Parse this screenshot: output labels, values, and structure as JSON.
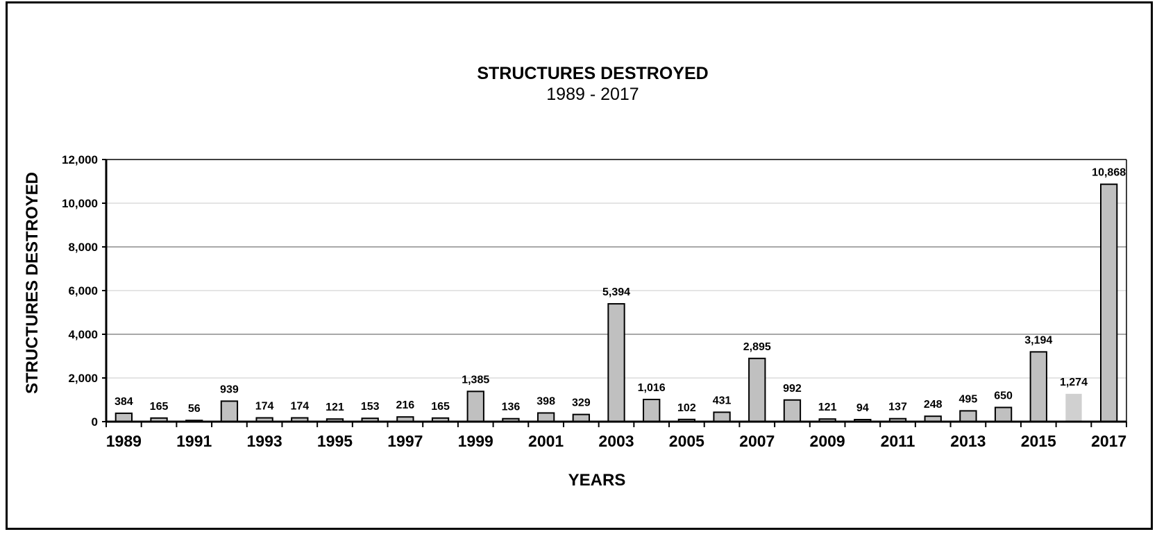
{
  "chart_data": {
    "type": "bar",
    "title": "STRUCTURES DESTROYED",
    "subtitle": "1989 - 2017",
    "xlabel": "YEARS",
    "ylabel": "STRUCTURES DESTROYED",
    "ylim": [
      0,
      12000
    ],
    "yticks": [
      0,
      2000,
      4000,
      6000,
      8000,
      10000,
      12000
    ],
    "ytick_labels": [
      "0",
      "2,000",
      "4,000",
      "6,000",
      "8,000",
      "10,000",
      "12,000"
    ],
    "grid": true,
    "categories": [
      "1989",
      "1990",
      "1991",
      "1992",
      "1993",
      "1994",
      "1995",
      "1996",
      "1997",
      "1998",
      "1999",
      "2000",
      "2001",
      "2002",
      "2003",
      "2004",
      "2005",
      "2006",
      "2007",
      "2008",
      "2009",
      "2010",
      "2011",
      "2012",
      "2013",
      "2014",
      "2015",
      "2016",
      "2017"
    ],
    "xtick_labels": [
      "1989",
      "",
      "1991",
      "",
      "1993",
      "",
      "1995",
      "",
      "1997",
      "",
      "1999",
      "",
      "2001",
      "",
      "2003",
      "",
      "2005",
      "",
      "2007",
      "",
      "2009",
      "",
      "2011",
      "",
      "2013",
      "",
      "2015",
      "",
      "2017"
    ],
    "values": [
      384,
      165,
      56,
      939,
      174,
      174,
      121,
      153,
      216,
      165,
      1385,
      136,
      398,
      329,
      5394,
      1016,
      102,
      431,
      2895,
      992,
      121,
      94,
      137,
      248,
      495,
      650,
      3194,
      1274,
      10868
    ],
    "value_labels": [
      "384",
      "165",
      "56",
      "939",
      "174",
      "174",
      "121",
      "153",
      "216",
      "165",
      "1,385",
      "136",
      "398",
      "329",
      "5,394",
      "1,016",
      "102",
      "431",
      "2,895",
      "992",
      "121",
      "94",
      "137",
      "248",
      "495",
      "650",
      "3,194",
      "1,274",
      "10,868"
    ],
    "bar_color": "#c0c0c0",
    "bar_outline_color": "#000000",
    "highlight_bar_color": "#d0d0d0",
    "highlight_bar_index": 27
  }
}
